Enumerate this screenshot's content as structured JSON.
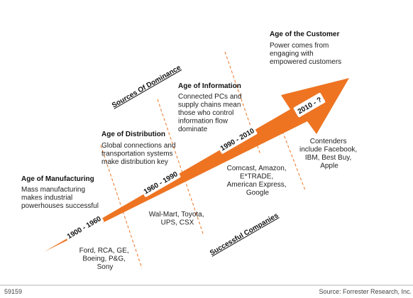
{
  "colors": {
    "arrow": "#ee7422",
    "dashes": "#ee7422",
    "label_box": "#ffffff",
    "footer_rule": "#999999"
  },
  "ages": [
    {
      "title": "Age of Manufacturing",
      "description": [
        "Mass manufacturing",
        "makes industrial",
        "powerhouses successful"
      ]
    },
    {
      "title": "Age of Distribution",
      "description": [
        "Global connections and",
        "transportation systems",
        "make distribution key"
      ]
    },
    {
      "title": "Age of Information",
      "description": [
        "Connected PCs and",
        "supply chains mean",
        "those who control",
        "information flow",
        "dominate"
      ]
    },
    {
      "title": "Age of the Customer",
      "description": [
        "Power comes from",
        "engaging with",
        "empowered customers"
      ]
    }
  ],
  "eras": [
    "1900 - 1960",
    "1960 - 1990",
    "1990 - 2010",
    "2010 - ?"
  ],
  "companies": [
    [
      "Ford, RCA, GE,",
      "Boeing, P&G,",
      "Sony"
    ],
    [
      "Wal-Mart, Toyota,",
      "UPS, CSX"
    ],
    [
      "Comcast, Amazon,",
      "E*TRADE,",
      "American Express,",
      "Google"
    ],
    [
      "Contenders",
      "include Facebook,",
      "IBM, Best Buy,",
      "Apple"
    ]
  ],
  "labels": {
    "sources": "Sources Of Dominance",
    "successful": "Successful Companies"
  },
  "footer": {
    "id": "59159",
    "source": "Source: Forrester Research, Inc."
  }
}
